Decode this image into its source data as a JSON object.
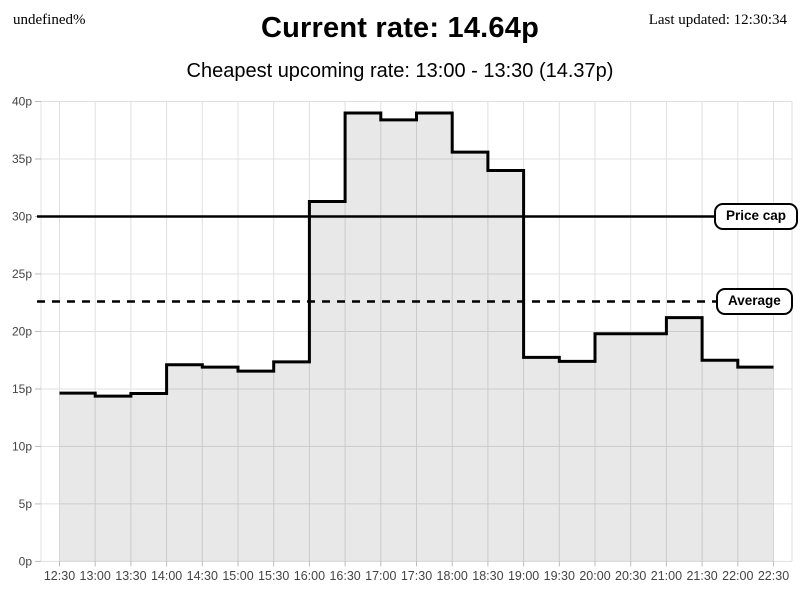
{
  "header": {
    "percent_label": "undefined%",
    "title": "Current rate: 14.64p",
    "last_updated": "Last updated: 12:30:34",
    "subtitle": "Cheapest upcoming rate: 13:00 - 13:30 (14.37p)"
  },
  "chart_data": {
    "type": "area",
    "stepped": true,
    "x": [
      "12:30",
      "13:00",
      "13:30",
      "14:00",
      "14:30",
      "15:00",
      "15:30",
      "16:00",
      "16:30",
      "17:00",
      "17:30",
      "18:00",
      "18:30",
      "19:00",
      "19:30",
      "20:00",
      "20:30",
      "21:00",
      "21:30",
      "22:00",
      "22:30"
    ],
    "values": [
      14.64,
      14.37,
      14.6,
      17.1,
      16.9,
      16.55,
      17.35,
      31.3,
      39.0,
      38.4,
      39.0,
      35.6,
      34.0,
      17.75,
      17.4,
      19.8,
      19.8,
      21.2,
      17.5,
      16.9,
      16.9
    ],
    "unit": "p",
    "ylim": [
      0,
      40
    ],
    "y_tick_step": 5,
    "y_tick_labels": [
      "0p",
      "5p",
      "10p",
      "15p",
      "20p",
      "25p",
      "30p",
      "35p",
      "40p"
    ],
    "grid": true,
    "legend": "none",
    "reference_lines": [
      {
        "label": "Price cap",
        "value": 30,
        "style": "solid"
      },
      {
        "label": "Average",
        "value": 22.6,
        "style": "dashed"
      }
    ],
    "colors": {
      "line": "#000000",
      "fill": "rgba(0,0,0,0.09)",
      "grid": "#e0e0e0",
      "tick": "#bbbbbb",
      "axis_label": "#444444"
    }
  }
}
